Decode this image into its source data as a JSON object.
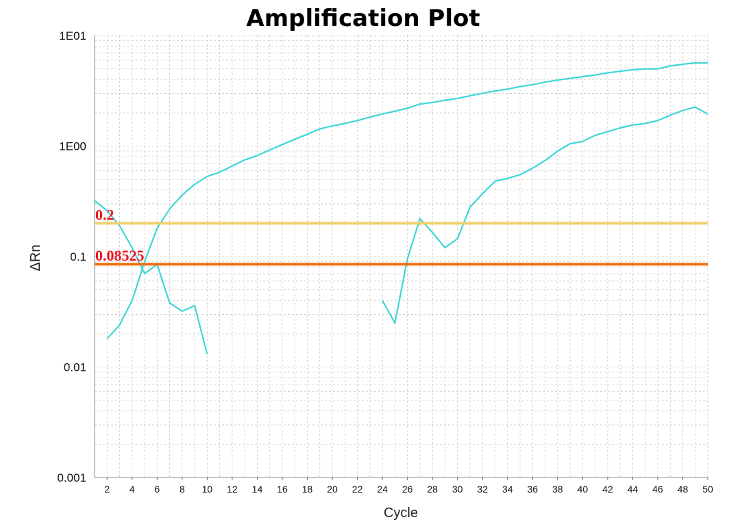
{
  "chart_data": {
    "type": "line",
    "title": "Amplification Plot",
    "xlabel": "Cycle",
    "ylabel": "ΔRn",
    "y_scale": "log",
    "ylim": [
      0.001,
      10
    ],
    "xlim": [
      1,
      50
    ],
    "y_ticks": [
      {
        "value": 10,
        "label": "1E01"
      },
      {
        "value": 1,
        "label": "1E00"
      },
      {
        "value": 0.1,
        "label": "0.1"
      },
      {
        "value": 0.01,
        "label": "0.01"
      },
      {
        "value": 0.001,
        "label": "0.001"
      }
    ],
    "x_ticks": [
      2,
      4,
      6,
      8,
      10,
      12,
      14,
      16,
      18,
      20,
      22,
      24,
      26,
      28,
      30,
      32,
      34,
      36,
      38,
      40,
      42,
      44,
      46,
      48,
      50
    ],
    "grid": true,
    "line_color": "#3ed6d6",
    "series": [
      {
        "segments": [
          [
            [
              1,
              0.32
            ],
            [
              2,
              0.26
            ],
            [
              3,
              0.19
            ],
            [
              4,
              0.12
            ],
            [
              5,
              0.07
            ],
            [
              6,
              0.085
            ],
            [
              7,
              0.038
            ],
            [
              8,
              0.032
            ],
            [
              9,
              0.036
            ],
            [
              10,
              0.013
            ]
          ]
        ]
      },
      {
        "segments": [
          [
            [
              2,
              0.018
            ],
            [
              3,
              0.024
            ],
            [
              4,
              0.04
            ],
            [
              5,
              0.09
            ],
            [
              6,
              0.18
            ],
            [
              7,
              0.27
            ],
            [
              8,
              0.36
            ],
            [
              9,
              0.45
            ],
            [
              10,
              0.53
            ],
            [
              11,
              0.58
            ],
            [
              12,
              0.66
            ],
            [
              13,
              0.75
            ],
            [
              14,
              0.82
            ],
            [
              15,
              0.92
            ],
            [
              16,
              1.03
            ],
            [
              17,
              1.15
            ],
            [
              18,
              1.28
            ],
            [
              19,
              1.43
            ],
            [
              20,
              1.52
            ],
            [
              21,
              1.6
            ],
            [
              22,
              1.7
            ],
            [
              23,
              1.83
            ],
            [
              24,
              1.95
            ],
            [
              25,
              2.07
            ],
            [
              26,
              2.2
            ],
            [
              27,
              2.4
            ],
            [
              28,
              2.48
            ],
            [
              29,
              2.6
            ],
            [
              30,
              2.7
            ],
            [
              31,
              2.85
            ],
            [
              32,
              3.0
            ],
            [
              33,
              3.15
            ],
            [
              34,
              3.28
            ],
            [
              35,
              3.45
            ],
            [
              36,
              3.6
            ],
            [
              37,
              3.8
            ],
            [
              38,
              3.95
            ],
            [
              39,
              4.1
            ],
            [
              40,
              4.25
            ],
            [
              41,
              4.4
            ],
            [
              42,
              4.6
            ],
            [
              43,
              4.75
            ],
            [
              44,
              4.9
            ],
            [
              45,
              5.0
            ],
            [
              46,
              5.0
            ],
            [
              47,
              5.3
            ],
            [
              48,
              5.5
            ],
            [
              49,
              5.65
            ],
            [
              50,
              5.65
            ]
          ]
        ]
      },
      {
        "segments": [
          [
            [
              24,
              0.04
            ],
            [
              25,
              0.025
            ],
            [
              26,
              0.095
            ],
            [
              27,
              0.22
            ],
            [
              28,
              0.165
            ],
            [
              29,
              0.12
            ],
            [
              30,
              0.145
            ],
            [
              31,
              0.28
            ],
            [
              32,
              0.37
            ],
            [
              33,
              0.48
            ],
            [
              34,
              0.51
            ],
            [
              35,
              0.55
            ],
            [
              36,
              0.63
            ],
            [
              37,
              0.74
            ],
            [
              38,
              0.9
            ],
            [
              39,
              1.05
            ],
            [
              40,
              1.1
            ],
            [
              41,
              1.25
            ],
            [
              42,
              1.35
            ],
            [
              43,
              1.46
            ],
            [
              44,
              1.55
            ],
            [
              45,
              1.6
            ],
            [
              46,
              1.7
            ],
            [
              47,
              1.9
            ],
            [
              48,
              2.1
            ],
            [
              49,
              2.25
            ],
            [
              50,
              1.95
            ]
          ]
        ]
      }
    ],
    "thresholds": [
      {
        "value": 0.2,
        "label": "0.2",
        "color": "#f0d070"
      },
      {
        "value": 0.08525,
        "label": "0.08525",
        "color": "#f07010"
      }
    ]
  }
}
